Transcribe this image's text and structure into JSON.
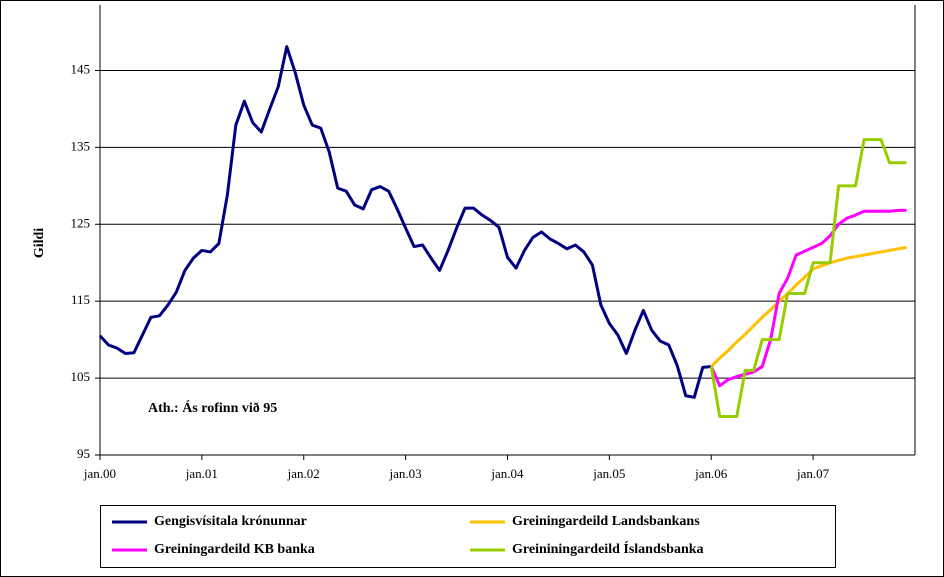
{
  "chart_data": {
    "type": "line",
    "ylabel": "Gildi",
    "annotation": "Ath.: Ás rofinn við 95",
    "categories": [
      "jan.00",
      null,
      null,
      null,
      null,
      null,
      null,
      null,
      null,
      null,
      null,
      null,
      "jan.01",
      null,
      null,
      null,
      null,
      null,
      null,
      null,
      null,
      null,
      null,
      null,
      "jan.02",
      null,
      null,
      null,
      null,
      null,
      null,
      null,
      null,
      null,
      null,
      null,
      "jan.03",
      null,
      null,
      null,
      null,
      null,
      null,
      null,
      null,
      null,
      null,
      null,
      "jan.04",
      null,
      null,
      null,
      null,
      null,
      null,
      null,
      null,
      null,
      null,
      null,
      "jan.05",
      null,
      null,
      null,
      null,
      null,
      null,
      null,
      null,
      null,
      null,
      null,
      "jan.06",
      null,
      null,
      null,
      null,
      null,
      null,
      null,
      null,
      null,
      null,
      null,
      "jan.07",
      null,
      null,
      null,
      null,
      null,
      null,
      null,
      null,
      null,
      null,
      null
    ],
    "ylim": [
      95,
      150
    ],
    "yticks": [
      95,
      105,
      115,
      125,
      135,
      145
    ],
    "grid": true,
    "series": [
      {
        "name": "Gengisvísitala krónunnar",
        "color": "#000080",
        "values": [
          110.5,
          109.3,
          108.9,
          108.2,
          108.3,
          110.6,
          112.9,
          113.1,
          114.5,
          116.2,
          119,
          120.6,
          121.6,
          121.4,
          122.5,
          128.8,
          137.9,
          141,
          138.2,
          137,
          140,
          142.9,
          148.1,
          144.7,
          140.5,
          137.9,
          137.5,
          134.4,
          129.7,
          129.3,
          127.5,
          127,
          129.5,
          129.9,
          129.3,
          127,
          124.5,
          122.1,
          122.3,
          120.6,
          119,
          121.6,
          124.5,
          127.1,
          127.1,
          126.2,
          125.5,
          124.6,
          120.7,
          119.3,
          121.6,
          123.3,
          124,
          123.1,
          122.5,
          121.8,
          122.3,
          121.4,
          119.7,
          114.5,
          112.1,
          110.6,
          108.2,
          111.2,
          113.8,
          111.2,
          109.8,
          109.3,
          106.6,
          102.7,
          102.5,
          106.4,
          106.5,
          null,
          null,
          null,
          null,
          null,
          null,
          null,
          null,
          null,
          null,
          null,
          null,
          null,
          null,
          null,
          null,
          null,
          null,
          null,
          null,
          null,
          null,
          null
        ]
      },
      {
        "name": "Greiningardeild Landsbankans",
        "color": "#FFC000",
        "values": [
          null,
          null,
          null,
          null,
          null,
          null,
          null,
          null,
          null,
          null,
          null,
          null,
          null,
          null,
          null,
          null,
          null,
          null,
          null,
          null,
          null,
          null,
          null,
          null,
          null,
          null,
          null,
          null,
          null,
          null,
          null,
          null,
          null,
          null,
          null,
          null,
          null,
          null,
          null,
          null,
          null,
          null,
          null,
          null,
          null,
          null,
          null,
          null,
          null,
          null,
          null,
          null,
          null,
          null,
          null,
          null,
          null,
          null,
          null,
          null,
          null,
          null,
          null,
          null,
          null,
          null,
          null,
          null,
          null,
          null,
          null,
          null,
          106.5,
          107.6,
          108.6,
          109.7,
          110.7,
          111.8,
          112.9,
          113.9,
          115,
          116,
          117.1,
          118.1,
          119.2,
          119.6,
          120,
          120.3,
          120.6,
          120.8,
          121,
          121.2,
          121.4,
          121.6,
          121.8,
          122
        ]
      },
      {
        "name": "Greiningardeild KB banka",
        "color": "#FF00FF",
        "values": [
          null,
          null,
          null,
          null,
          null,
          null,
          null,
          null,
          null,
          null,
          null,
          null,
          null,
          null,
          null,
          null,
          null,
          null,
          null,
          null,
          null,
          null,
          null,
          null,
          null,
          null,
          null,
          null,
          null,
          null,
          null,
          null,
          null,
          null,
          null,
          null,
          null,
          null,
          null,
          null,
          null,
          null,
          null,
          null,
          null,
          null,
          null,
          null,
          null,
          null,
          null,
          null,
          null,
          null,
          null,
          null,
          null,
          null,
          null,
          null,
          null,
          null,
          null,
          null,
          null,
          null,
          null,
          null,
          null,
          null,
          null,
          null,
          106.5,
          104,
          104.8,
          105.2,
          105.5,
          105.8,
          106.5,
          110,
          116,
          118,
          121,
          121.5,
          122,
          122.5,
          123.5,
          125,
          125.8,
          126.2,
          126.7,
          126.7,
          126.7,
          126.7,
          126.8,
          126.8
        ]
      },
      {
        "name": "Greininingardeild Íslandsbanka",
        "color": "#99CC00",
        "values": [
          null,
          null,
          null,
          null,
          null,
          null,
          null,
          null,
          null,
          null,
          null,
          null,
          null,
          null,
          null,
          null,
          null,
          null,
          null,
          null,
          null,
          null,
          null,
          null,
          null,
          null,
          null,
          null,
          null,
          null,
          null,
          null,
          null,
          null,
          null,
          null,
          null,
          null,
          null,
          null,
          null,
          null,
          null,
          null,
          null,
          null,
          null,
          null,
          null,
          null,
          null,
          null,
          null,
          null,
          null,
          null,
          null,
          null,
          null,
          null,
          null,
          null,
          null,
          null,
          null,
          null,
          null,
          null,
          null,
          null,
          null,
          null,
          106.5,
          100,
          100,
          100,
          106,
          106,
          110,
          110,
          110,
          116,
          116,
          116,
          120,
          120,
          120,
          130,
          130,
          130,
          136,
          136,
          136,
          133,
          133,
          133
        ]
      }
    ]
  }
}
